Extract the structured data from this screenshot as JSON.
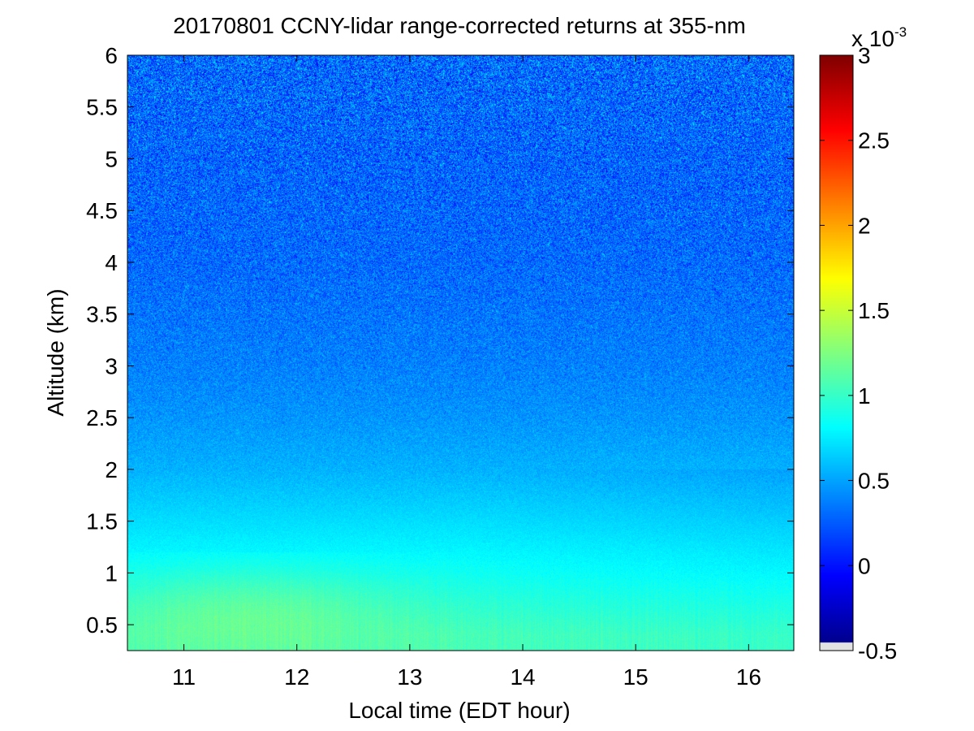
{
  "chart_data": {
    "type": "heatmap",
    "title": "20170801 CCNY-lidar range-corrected returns at 355-nm",
    "xlabel": "Local time (EDT hour)",
    "ylabel": "Altitude (km)",
    "xlim": [
      10.5,
      16.4
    ],
    "ylim": [
      0.25,
      6
    ],
    "xticks": [
      11,
      12,
      13,
      14,
      15,
      16
    ],
    "xtick_labels": [
      "11",
      "12",
      "13",
      "14",
      "15",
      "16"
    ],
    "yticks": [
      0.5,
      1,
      1.5,
      2,
      2.5,
      3,
      3.5,
      4,
      4.5,
      5,
      5.5,
      6
    ],
    "ytick_labels": [
      "0.5",
      "1",
      "1.5",
      "2",
      "2.5",
      "3",
      "3.5",
      "4",
      "4.5",
      "5",
      "5.5",
      "6"
    ],
    "colorbar": {
      "colormap": "jet",
      "clim": [
        -0.5,
        3
      ],
      "ticks": [
        -0.5,
        0,
        0.5,
        1,
        1.5,
        2,
        2.5,
        3
      ],
      "tick_labels": [
        "-0.5",
        "0",
        "0.5",
        "1",
        "1.5",
        "2",
        "2.5",
        "3"
      ],
      "multiplier_base": "x 10",
      "multiplier_exponent": "-3"
    },
    "profile_description": [
      {
        "altitude_km": 0.4,
        "value_e3": 1.05
      },
      {
        "altitude_km": 1.0,
        "value_e3": 0.85
      },
      {
        "altitude_km": 1.5,
        "value_e3": 0.7
      },
      {
        "altitude_km": 2.0,
        "value_e3": 0.55
      },
      {
        "altitude_km": 2.5,
        "value_e3": 0.45
      },
      {
        "altitude_km": 3.0,
        "value_e3": 0.38
      },
      {
        "altitude_km": 4.0,
        "value_e3": 0.3
      },
      {
        "altitude_km": 5.0,
        "value_e3": 0.28
      },
      {
        "altitude_km": 6.0,
        "value_e3": 0.3
      }
    ],
    "near_surface_peak": {
      "time_hour": 11.6,
      "altitude_km": 0.5,
      "value_e3": 1.2
    }
  }
}
